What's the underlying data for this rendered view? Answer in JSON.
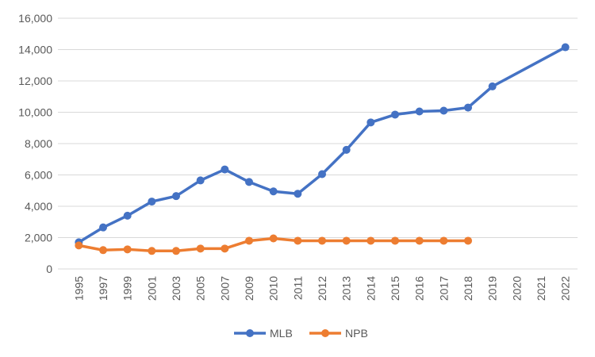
{
  "chart_data": {
    "type": "line",
    "categories": [
      "1995",
      "1997",
      "1999",
      "2001",
      "2003",
      "2005",
      "2007",
      "2009",
      "2010",
      "2011",
      "2012",
      "2013",
      "2014",
      "2015",
      "2016",
      "2017",
      "2018",
      "2019",
      "2020",
      "2021",
      "2022"
    ],
    "series": [
      {
        "name": "MLB",
        "color": "#4472c4",
        "values": [
          1700,
          2650,
          3400,
          4300,
          4650,
          5650,
          6350,
          5550,
          4950,
          4800,
          6050,
          7600,
          9350,
          9850,
          10050,
          10100,
          10300,
          11650,
          null,
          null,
          14150
        ]
      },
      {
        "name": "NPB",
        "color": "#ed7d31",
        "values": [
          1500,
          1200,
          1250,
          1150,
          1150,
          1300,
          1300,
          1800,
          1950,
          1800,
          1800,
          1800,
          1800,
          1800,
          1800,
          1800,
          1800,
          null,
          null,
          null,
          null
        ]
      }
    ],
    "ylim": [
      0,
      16000
    ],
    "yticks": [
      0,
      {
        "value": 2000,
        "label": "2,000"
      },
      {
        "value": 4000,
        "label": "4,000"
      },
      {
        "value": 6000,
        "label": "6,000"
      },
      {
        "value": 8000,
        "label": "8,000"
      },
      {
        "value": 10000,
        "label": "10,000"
      },
      {
        "value": 12000,
        "label": "12,000"
      },
      {
        "value": 14000,
        "label": "14,000"
      },
      {
        "value": 16000,
        "label": "16,000"
      }
    ],
    "grid": true,
    "legend": "bottom"
  }
}
